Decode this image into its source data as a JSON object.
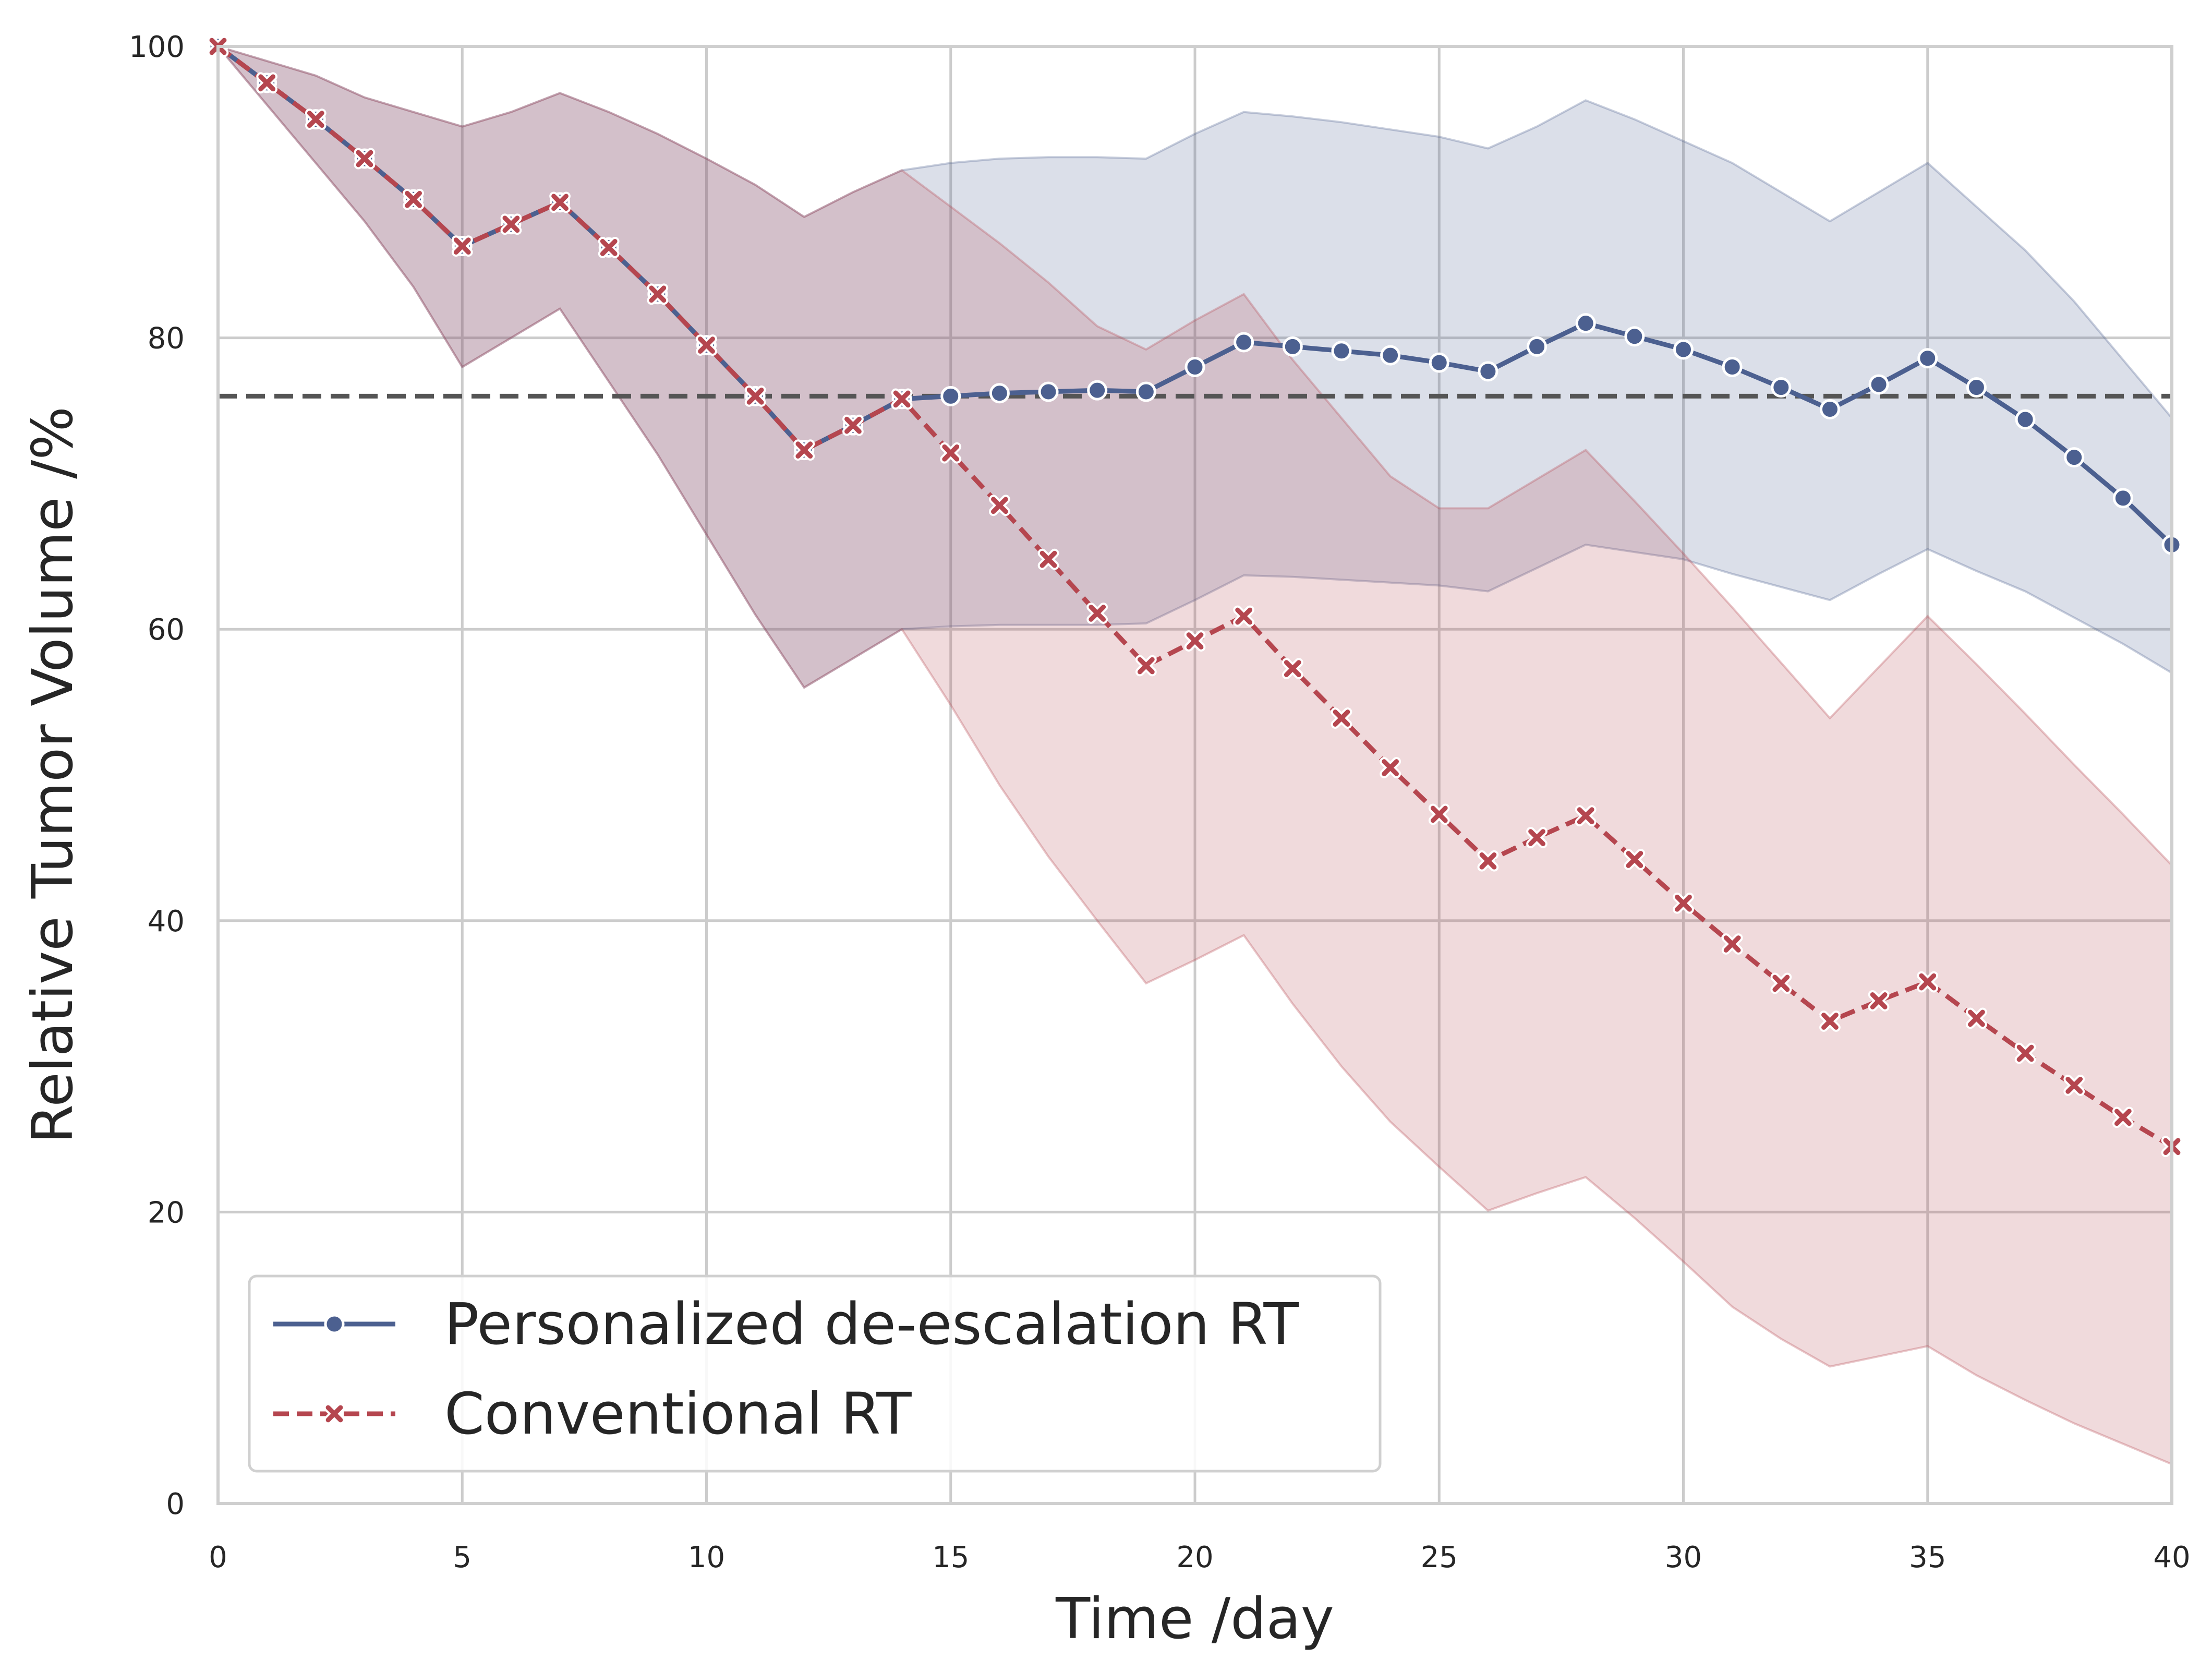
{
  "chart_data": {
    "type": "line",
    "title": "",
    "xlabel": "Time /day",
    "ylabel": "Relative Tumor Volume /%",
    "xlim": [
      0,
      40
    ],
    "ylim": [
      0,
      100
    ],
    "xticks": [
      "0",
      "5",
      "10",
      "15",
      "20",
      "25",
      "30",
      "35",
      "40"
    ],
    "yticks": [
      "0",
      "20",
      "40",
      "60",
      "80",
      "100"
    ],
    "grid": true,
    "legend_position": "lower-left",
    "reference_line": {
      "y": 76,
      "style": "dashed",
      "color": "#555555"
    },
    "x": [
      0,
      1,
      2,
      3,
      4,
      5,
      6,
      7,
      8,
      9,
      10,
      11,
      12,
      13,
      14,
      15,
      16,
      17,
      18,
      19,
      20,
      21,
      22,
      23,
      24,
      25,
      26,
      27,
      28,
      29,
      30,
      31,
      32,
      33,
      34,
      35,
      36,
      37,
      38,
      39,
      40
    ],
    "series": [
      {
        "name": "Personalized de-escalation RT",
        "color": "#4c6090",
        "marker": "circle",
        "line_style": "solid",
        "values": [
          100,
          97.5,
          95,
          92.3,
          89.5,
          86.3,
          87.8,
          89.3,
          86.2,
          83,
          79.5,
          76,
          72.3,
          74,
          75.8,
          76,
          76.2,
          76.3,
          76.4,
          76.3,
          78,
          79.7,
          79.4,
          79.1,
          78.8,
          78.3,
          77.7,
          79.4,
          81,
          80.1,
          79.2,
          78,
          76.6,
          75.1,
          76.8,
          78.6,
          76.6,
          74.4,
          71.8,
          69,
          65.8
        ],
        "band_upper": [
          100,
          99,
          98,
          96.5,
          95.5,
          94.5,
          95.5,
          96.8,
          95.5,
          94,
          92.3,
          90.5,
          88.3,
          90,
          91.5,
          92,
          92.3,
          92.4,
          92.4,
          92.3,
          94,
          95.5,
          95.2,
          94.8,
          94.3,
          93.8,
          93,
          94.5,
          96.3,
          95,
          93.5,
          92,
          90,
          88,
          90,
          92,
          89,
          86,
          82.5,
          78.5,
          74.5
        ],
        "band_lower": [
          100,
          96,
          92,
          88,
          83.5,
          78,
          80,
          82,
          77,
          72,
          66.5,
          61,
          56,
          58,
          60,
          60.2,
          60.3,
          60.3,
          60.3,
          60.4,
          62,
          63.7,
          63.6,
          63.4,
          63.2,
          63,
          62.6,
          64.2,
          65.8,
          65.3,
          64.8,
          63.8,
          62.9,
          62,
          63.8,
          65.5,
          64,
          62.6,
          60.8,
          59,
          57
        ]
      },
      {
        "name": "Conventional RT",
        "color": "#b5464f",
        "marker": "x",
        "line_style": "dashed",
        "values": [
          100,
          97.5,
          95,
          92.3,
          89.5,
          86.3,
          87.8,
          89.3,
          86.2,
          83,
          79.5,
          76,
          72.3,
          74,
          75.8,
          72.1,
          68.5,
          64.8,
          61.1,
          57.5,
          59.2,
          60.9,
          57.3,
          53.9,
          50.5,
          47.3,
          44.1,
          45.7,
          47.2,
          44.2,
          41.2,
          38.4,
          35.7,
          33.1,
          34.5,
          35.8,
          33.3,
          30.9,
          28.7,
          26.5,
          24.5
        ],
        "band_upper": [
          100,
          99,
          98,
          96.5,
          95.5,
          94.5,
          95.5,
          96.8,
          95.5,
          94,
          92.3,
          90.5,
          88.3,
          90,
          91.5,
          89,
          86.5,
          83.8,
          80.8,
          79.2,
          81.2,
          83,
          78.5,
          74.5,
          70.5,
          68.3,
          68.3,
          70.3,
          72.3,
          68.8,
          65.2,
          61.5,
          57.7,
          53.9,
          57.4,
          60.9,
          57.6,
          54.2,
          50.7,
          47.3,
          43.8
        ],
        "band_lower": [
          100,
          96,
          92,
          88,
          83.5,
          78,
          80,
          82,
          77,
          72,
          66.5,
          61,
          56,
          58,
          60,
          54.8,
          49.3,
          44.4,
          40,
          35.7,
          37.3,
          39,
          34.3,
          30,
          26.2,
          23.1,
          20.1,
          21.3,
          22.4,
          19.6,
          16.6,
          13.5,
          11.3,
          9.4,
          10.1,
          10.8,
          8.8,
          7.1,
          5.5,
          4.1,
          2.7
        ]
      }
    ]
  }
}
